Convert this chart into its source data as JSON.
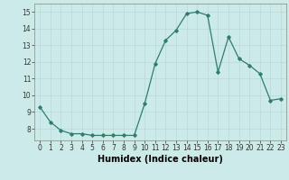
{
  "x": [
    0,
    1,
    2,
    3,
    4,
    5,
    6,
    7,
    8,
    9,
    10,
    11,
    12,
    13,
    14,
    15,
    16,
    17,
    18,
    19,
    20,
    21,
    22,
    23
  ],
  "y": [
    9.3,
    8.4,
    7.9,
    7.7,
    7.7,
    7.6,
    7.6,
    7.6,
    7.6,
    7.6,
    9.5,
    11.9,
    13.3,
    13.9,
    14.9,
    15.0,
    14.8,
    11.4,
    13.5,
    12.2,
    11.8,
    11.3,
    9.7,
    9.8
  ],
  "line_color": "#2e7d6e",
  "marker": "D",
  "markersize": 1.8,
  "linewidth": 0.9,
  "xlabel": "Humidex (Indice chaleur)",
  "ylabel": "",
  "xlim": [
    -0.5,
    23.5
  ],
  "ylim": [
    7.3,
    15.5
  ],
  "yticks": [
    8,
    9,
    10,
    11,
    12,
    13,
    14,
    15
  ],
  "xticks": [
    0,
    1,
    2,
    3,
    4,
    5,
    6,
    7,
    8,
    9,
    10,
    11,
    12,
    13,
    14,
    15,
    16,
    17,
    18,
    19,
    20,
    21,
    22,
    23
  ],
  "xtick_labels": [
    "0",
    "1",
    "2",
    "3",
    "4",
    "5",
    "6",
    "7",
    "8",
    "9",
    "10",
    "11",
    "12",
    "13",
    "14",
    "15",
    "16",
    "17",
    "18",
    "19",
    "20",
    "21",
    "22",
    "23"
  ],
  "bg_color": "#cceae8",
  "grid_color": "#b8d8d6",
  "grid_linewidth": 0.5,
  "tick_fontsize": 5.5,
  "xlabel_fontsize": 7.0
}
